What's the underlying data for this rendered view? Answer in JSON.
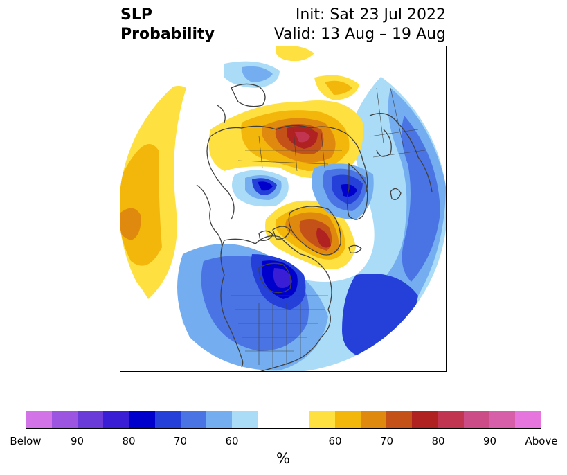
{
  "header": {
    "title_line1": "SLP",
    "title_line2": "Probability",
    "init": "Init: Sat 23 Jul 2022",
    "valid": "Valid: 13 Aug – 19 Aug"
  },
  "colorbar": {
    "below_colors": [
      "#d373e8",
      "#9c55e0",
      "#6a3bd8",
      "#3a1ed6",
      "#0000cc",
      "#2440d8",
      "#4a74e4",
      "#74aef0",
      "#aadcf8"
    ],
    "neutral_color": "#ffffff",
    "above_colors": [
      "#fee040",
      "#f3b70b",
      "#e0890f",
      "#c45218",
      "#b02122",
      "#c23551",
      "#cb4c87",
      "#d75ea8",
      "#e676de"
    ],
    "ticks": [
      "Below",
      "90",
      "80",
      "70",
      "60",
      "60",
      "70",
      "80",
      "90",
      "Above"
    ],
    "unit_label": "%"
  },
  "map": {
    "projection": "north-polar-stereographic",
    "features": [
      "coastlines",
      "country-borders",
      "state-borders"
    ]
  }
}
